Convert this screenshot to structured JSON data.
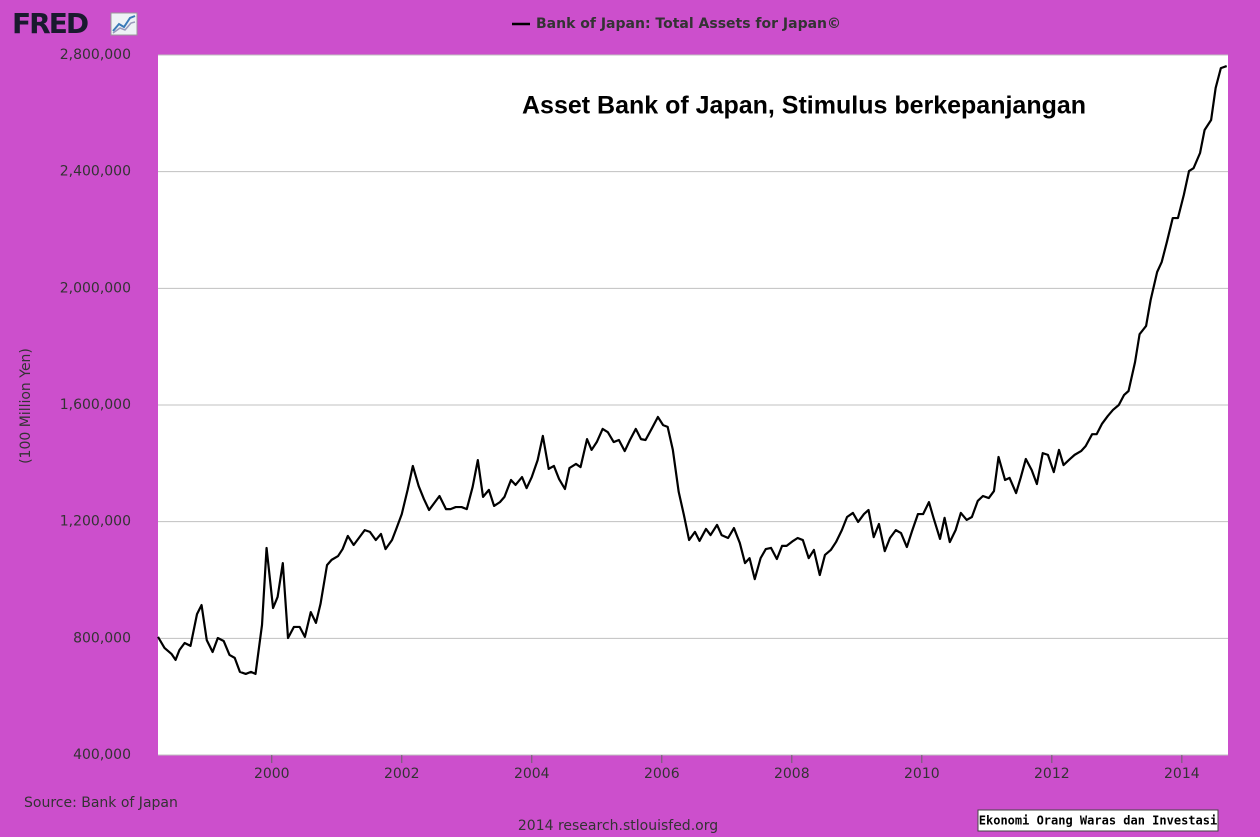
{
  "logo": "FRED",
  "chart_data": {
    "type": "line",
    "annotation": "Asset Bank of Japan, Stimulus berkepanjangan",
    "y_label": "(100 Million Yen)",
    "source": "Source: Bank of Japan",
    "footer": "2014 research.stlouisfed.org",
    "watermark": "Ekonomi Orang Waras dan Investasi",
    "xlim": [
      1998.25,
      2014.71
    ],
    "xticks": [
      2000,
      2002,
      2004,
      2006,
      2008,
      2010,
      2012,
      2014
    ],
    "ylim": [
      400000,
      2800000
    ],
    "yticks": [
      {
        "value": 400000,
        "label": "400,000"
      },
      {
        "value": 800000,
        "label": "800,000"
      },
      {
        "value": 1200000,
        "label": "1,200,000"
      },
      {
        "value": 1600000,
        "label": "1,600,000"
      },
      {
        "value": 2000000,
        "label": "2,000,000"
      },
      {
        "value": 2400000,
        "label": "2,400,000"
      },
      {
        "value": 2800000,
        "label": "2,800,000"
      }
    ],
    "grid": true,
    "x": [
      1998.25,
      1998.35,
      1998.46,
      1998.52,
      1998.58,
      1998.66,
      1998.75,
      1998.85,
      1998.92,
      1999.0,
      1999.09,
      1999.17,
      1999.26,
      1999.35,
      1999.43,
      1999.51,
      1999.6,
      1999.68,
      1999.75,
      1999.85,
      1999.92,
      2000.02,
      2000.09,
      2000.17,
      2000.25,
      2000.34,
      2000.43,
      2000.51,
      2000.6,
      2000.68,
      2000.75,
      2000.85,
      2000.92,
      2001.02,
      2001.09,
      2001.17,
      2001.26,
      2001.34,
      2001.43,
      2001.51,
      2001.6,
      2001.68,
      2001.75,
      2001.85,
      2001.92,
      2002.0,
      2002.09,
      2002.17,
      2002.26,
      2002.34,
      2002.42,
      2002.51,
      2002.58,
      2002.68,
      2002.75,
      2002.83,
      2002.92,
      2003.0,
      2003.09,
      2003.17,
      2003.25,
      2003.34,
      2003.42,
      2003.51,
      2003.58,
      2003.68,
      2003.75,
      2003.85,
      2003.92,
      2004.0,
      2004.09,
      2004.17,
      2004.26,
      2004.34,
      2004.42,
      2004.51,
      2004.58,
      2004.68,
      2004.75,
      2004.85,
      2004.92,
      2005.0,
      2005.09,
      2005.17,
      2005.26,
      2005.34,
      2005.43,
      2005.51,
      2005.6,
      2005.68,
      2005.75,
      2005.85,
      2005.94,
      2006.02,
      2006.09,
      2006.17,
      2006.26,
      2006.34,
      2006.42,
      2006.51,
      2006.58,
      2006.68,
      2006.75,
      2006.85,
      2006.92,
      2007.02,
      2007.11,
      2007.2,
      2007.28,
      2007.35,
      2007.43,
      2007.52,
      2007.6,
      2007.68,
      2007.77,
      2007.85,
      2007.92,
      2008.02,
      2008.09,
      2008.17,
      2008.26,
      2008.34,
      2008.43,
      2008.51,
      2008.6,
      2008.68,
      2008.77,
      2008.85,
      2008.94,
      2009.02,
      2009.11,
      2009.18,
      2009.26,
      2009.34,
      2009.43,
      2009.51,
      2009.6,
      2009.68,
      2009.77,
      2009.85,
      2009.94,
      2010.02,
      2010.11,
      2010.18,
      2010.28,
      2010.35,
      2010.43,
      2010.52,
      2010.6,
      2010.69,
      2010.77,
      2010.86,
      2010.94,
      2011.03,
      2011.11,
      2011.18,
      2011.28,
      2011.35,
      2011.45,
      2011.52,
      2011.6,
      2011.69,
      2011.77,
      2011.86,
      2011.94,
      2012.03,
      2012.11,
      2012.18,
      2012.28,
      2012.35,
      2012.45,
      2012.52,
      2012.62,
      2012.69,
      2012.77,
      2012.86,
      2012.94,
      2013.03,
      2013.11,
      2013.18,
      2013.28,
      2013.35,
      2013.45,
      2013.52,
      2013.62,
      2013.69,
      2013.77,
      2013.86,
      2013.94,
      2014.03,
      2014.11,
      2014.18,
      2014.28,
      2014.35,
      2014.45,
      2014.52,
      2014.6,
      2014.69
    ],
    "series": [
      {
        "name": "Bank of Japan: Total Assets for Japan©",
        "color": "#000000",
        "values": [
          805000,
          767000,
          746000,
          726000,
          760000,
          784000,
          774000,
          883000,
          914000,
          794000,
          753000,
          801000,
          791000,
          743000,
          733000,
          685000,
          678000,
          685000,
          678000,
          846000,
          1110000,
          904000,
          942000,
          1058000,
          801000,
          839000,
          839000,
          805000,
          890000,
          853000,
          918000,
          1051000,
          1069000,
          1082000,
          1106000,
          1151000,
          1120000,
          1144000,
          1171000,
          1165000,
          1137000,
          1158000,
          1106000,
          1137000,
          1178000,
          1226000,
          1309000,
          1391000,
          1322000,
          1278000,
          1240000,
          1267000,
          1288000,
          1243000,
          1243000,
          1250000,
          1250000,
          1243000,
          1319000,
          1411000,
          1285000,
          1309000,
          1254000,
          1267000,
          1285000,
          1343000,
          1326000,
          1353000,
          1315000,
          1353000,
          1411000,
          1494000,
          1381000,
          1391000,
          1346000,
          1312000,
          1384000,
          1398000,
          1387000,
          1483000,
          1446000,
          1473000,
          1518000,
          1507000,
          1473000,
          1480000,
          1442000,
          1480000,
          1518000,
          1483000,
          1480000,
          1521000,
          1559000,
          1531000,
          1525000,
          1446000,
          1302000,
          1223000,
          1137000,
          1165000,
          1134000,
          1175000,
          1154000,
          1189000,
          1154000,
          1144000,
          1178000,
          1127000,
          1058000,
          1075000,
          1003000,
          1075000,
          1106000,
          1110000,
          1072000,
          1117000,
          1117000,
          1134000,
          1144000,
          1137000,
          1075000,
          1103000,
          1017000,
          1086000,
          1103000,
          1130000,
          1171000,
          1216000,
          1230000,
          1199000,
          1226000,
          1240000,
          1147000,
          1192000,
          1099000,
          1144000,
          1171000,
          1161000,
          1113000,
          1168000,
          1226000,
          1226000,
          1267000,
          1213000,
          1141000,
          1213000,
          1130000,
          1171000,
          1230000,
          1206000,
          1216000,
          1271000,
          1288000,
          1281000,
          1305000,
          1422000,
          1343000,
          1350000,
          1298000,
          1350000,
          1415000,
          1377000,
          1329000,
          1435000,
          1429000,
          1370000,
          1446000,
          1394000,
          1415000,
          1429000,
          1442000,
          1459000,
          1500000,
          1500000,
          1535000,
          1562000,
          1583000,
          1600000,
          1634000,
          1648000,
          1747000,
          1843000,
          1871000,
          1960000,
          2056000,
          2090000,
          2159000,
          2241000,
          2241000,
          2320000,
          2402000,
          2412000,
          2464000,
          2543000,
          2577000,
          2687000,
          2755000,
          2762000
        ]
      }
    ]
  }
}
